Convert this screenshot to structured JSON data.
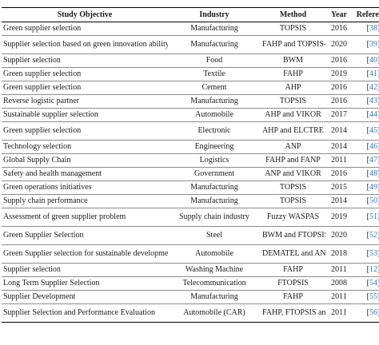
{
  "table": {
    "headers": [
      "Study Objective",
      "Industry",
      "Method",
      "Year",
      "Reference"
    ],
    "rows": [
      {
        "objective": "Green supplier selection",
        "industry": "Manufacturing",
        "method": "TOPSIS",
        "year": "2016",
        "ref": "38",
        "lines": 1
      },
      {
        "objective": "Supplier selection based on green innovation ability",
        "industry": "Manufacturing",
        "method": "FAHP and TOPSIS-Grey",
        "year": "2020",
        "ref": "39",
        "lines": 2
      },
      {
        "objective": "Supplier selection",
        "industry": "Food",
        "method": "BWM",
        "year": "2016",
        "ref": "40",
        "lines": 1
      },
      {
        "objective": "Green supplier selection",
        "industry": "Textile",
        "method": "FAHP",
        "year": "2019",
        "ref": "41",
        "lines": 1
      },
      {
        "objective": "Green supplier selection",
        "industry": "Cement",
        "method": "AHP",
        "year": "2016",
        "ref": "42",
        "lines": 1
      },
      {
        "objective": "Reverse logistic partner",
        "industry": "Manufacturing",
        "method": "TOPSIS",
        "year": "2016",
        "ref": "43",
        "lines": 1
      },
      {
        "objective": "Sustainable supplier selection",
        "industry": "Automobile",
        "method": "AHP and VIKOR",
        "year": "2017",
        "ref": "44",
        "lines": 1
      },
      {
        "objective": "Green supplier selection",
        "industry": "Electronic",
        "method": "AHP and ELCTRE",
        "year": "2014",
        "ref": "45",
        "lines": 2
      },
      {
        "objective": "Technology selection",
        "industry": "Engineering",
        "method": "ANP",
        "year": "2014",
        "ref": "46",
        "lines": 1
      },
      {
        "objective": "Global Supply Chain",
        "industry": "Logistics",
        "method": "FAHP and FANP",
        "year": "2011",
        "ref": "47",
        "lines": 1
      },
      {
        "objective": "Safety and health management",
        "industry": "Government",
        "method": "ANP and VIKOR",
        "year": "2016",
        "ref": "48",
        "lines": 1
      },
      {
        "objective": "Green operations initiatives",
        "industry": "Manufacturing",
        "method": "TOPSIS",
        "year": "2015",
        "ref": "49",
        "lines": 1
      },
      {
        "objective": "Supply chain performance",
        "industry": "Manufacturing",
        "method": "TOPSIS",
        "year": "2014",
        "ref": "50",
        "lines": 1
      },
      {
        "objective": "Assessment of green supplier problem",
        "industry": "Supply chain industry",
        "method": "Fuzzy WASPAS",
        "year": "2019",
        "ref": "51",
        "lines": 2
      },
      {
        "objective": "Green Supplier Selection",
        "industry": "Steel",
        "method": "BWM and FTOPSIS",
        "year": "2020",
        "ref": "52",
        "lines": 2
      },
      {
        "objective": "Green Supplier selection for sustainable development",
        "industry": "Automobile",
        "method": "DEMATEL and ANP",
        "year": "2018",
        "ref": "53",
        "lines": 2
      },
      {
        "objective": "Supplier selection",
        "industry": "Washing Machine",
        "method": "FAHP",
        "year": "2011",
        "ref": "12",
        "lines": 1
      },
      {
        "objective": "Long Term Supplier Selection",
        "industry": "Telecommunication",
        "method": "FTOPSIS",
        "year": "2008",
        "ref": "54",
        "lines": 1
      },
      {
        "objective": "Supplier Development",
        "industry": "Manufacturing",
        "method": "FAHP",
        "year": "2011",
        "ref": "55",
        "lines": 1
      },
      {
        "objective": "Supplier Selection and Performance Evaluation",
        "industry": "Automobile (CAR)",
        "method": "FAHP, FTOPSIS and DEA",
        "year": "2011",
        "ref": "56",
        "lines": 2
      }
    ]
  }
}
